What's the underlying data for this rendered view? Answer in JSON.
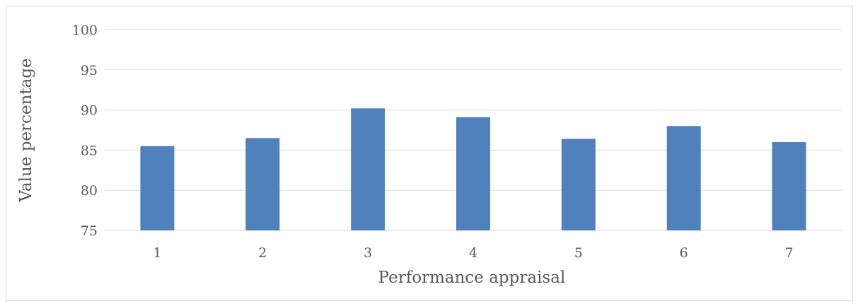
{
  "chart_data": {
    "type": "bar",
    "categories": [
      "1",
      "2",
      "3",
      "4",
      "5",
      "6",
      "7"
    ],
    "values": [
      85.5,
      86.5,
      90.2,
      89.1,
      86.4,
      88.0,
      86.0
    ],
    "title": "",
    "xlabel": "Performance appraisal",
    "ylabel": "Value percentage",
    "ylim": [
      75,
      100
    ],
    "yticks": [
      75,
      80,
      85,
      90,
      95,
      100
    ],
    "grid": true,
    "legend": "none",
    "bar_color": "#4f81bd",
    "grid_color": "#d9d9d9"
  }
}
